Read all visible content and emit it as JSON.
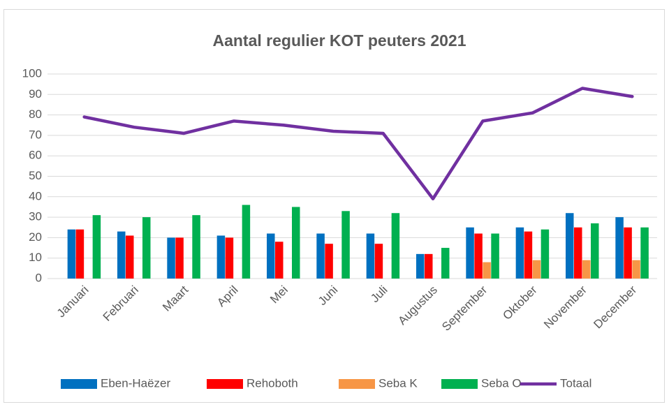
{
  "chart_data": {
    "type": "bar",
    "title": "Aantal regulier KOT peuters 2021",
    "categories": [
      "Januari",
      "Februari",
      "Maart",
      "April",
      "Mei",
      "Juni",
      "Juli",
      "Augustus",
      "September",
      "Oktober",
      "November",
      "December"
    ],
    "series": [
      {
        "name": "Eben-Haëzer",
        "color": "#0070c0",
        "values": [
          24,
          23,
          20,
          21,
          22,
          22,
          22,
          12,
          25,
          25,
          32,
          30
        ]
      },
      {
        "name": "Rehoboth",
        "color": "#ff0000",
        "values": [
          24,
          21,
          20,
          20,
          18,
          17,
          17,
          12,
          22,
          23,
          25,
          25
        ]
      },
      {
        "name": "Seba K",
        "color": "#f79646",
        "values": [
          null,
          null,
          null,
          null,
          null,
          null,
          null,
          null,
          8,
          9,
          9,
          9
        ]
      },
      {
        "name": "Seba O",
        "color": "#00b050",
        "values": [
          31,
          30,
          31,
          36,
          35,
          33,
          32,
          15,
          22,
          24,
          27,
          25
        ]
      },
      {
        "name": "Totaal",
        "color": "#7030a0",
        "type": "line",
        "values": [
          79,
          74,
          71,
          77,
          75,
          72,
          71,
          39,
          77,
          81,
          93,
          89
        ]
      }
    ],
    "ylim": [
      0,
      100
    ],
    "yticks": [
      0,
      10,
      20,
      30,
      40,
      50,
      60,
      70,
      80,
      90,
      100
    ],
    "grid": true,
    "legend": "bottom"
  }
}
